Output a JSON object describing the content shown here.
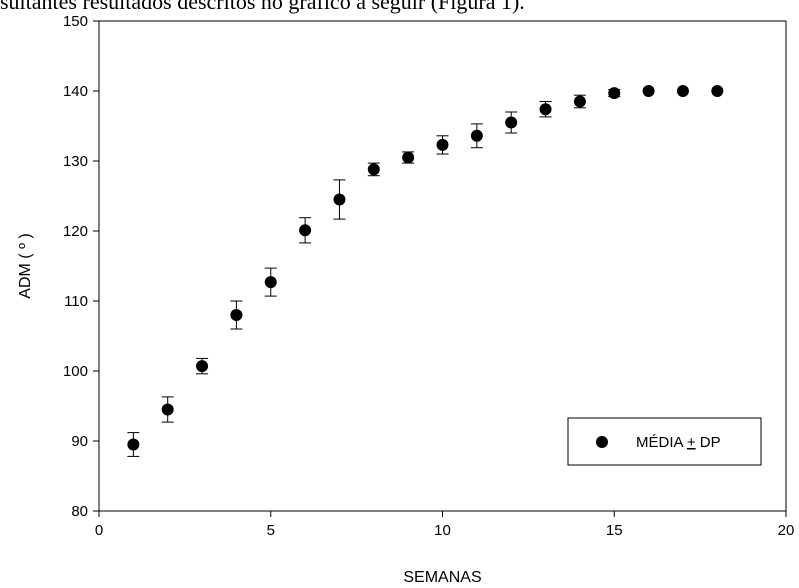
{
  "page": {
    "caption": "sultantes resultados descritos no gráfico a seguir (Figura 1)."
  },
  "chart_data": {
    "type": "scatter",
    "title": "",
    "xlabel": "SEMANAS",
    "ylabel": "ADM ( º )",
    "xlim": [
      0,
      20
    ],
    "ylim": [
      80,
      150
    ],
    "xticks": [
      0,
      5,
      10,
      15,
      20
    ],
    "yticks": [
      80,
      90,
      100,
      110,
      120,
      130,
      140,
      150
    ],
    "grid": false,
    "legend_position": "bottom-right",
    "legend_label_parts": [
      "MÉDIA ",
      "+",
      " DP"
    ],
    "series": [
      {
        "name": "MÉDIA + DP",
        "marker": "circle",
        "color": "#000000",
        "x": [
          1,
          2,
          3,
          4,
          5,
          6,
          7,
          8,
          9,
          10,
          11,
          12,
          13,
          14,
          15,
          16,
          17,
          18
        ],
        "y": [
          89.5,
          94.5,
          100.7,
          108.0,
          112.7,
          120.1,
          124.5,
          128.8,
          130.5,
          132.3,
          133.6,
          135.5,
          137.4,
          138.5,
          139.7,
          140.0,
          140.0,
          140.0
        ],
        "error": [
          1.7,
          1.8,
          1.1,
          2.0,
          2.0,
          1.8,
          2.8,
          0.9,
          0.8,
          1.3,
          1.7,
          1.5,
          1.1,
          0.9,
          0.5,
          0,
          0,
          0
        ]
      }
    ]
  }
}
